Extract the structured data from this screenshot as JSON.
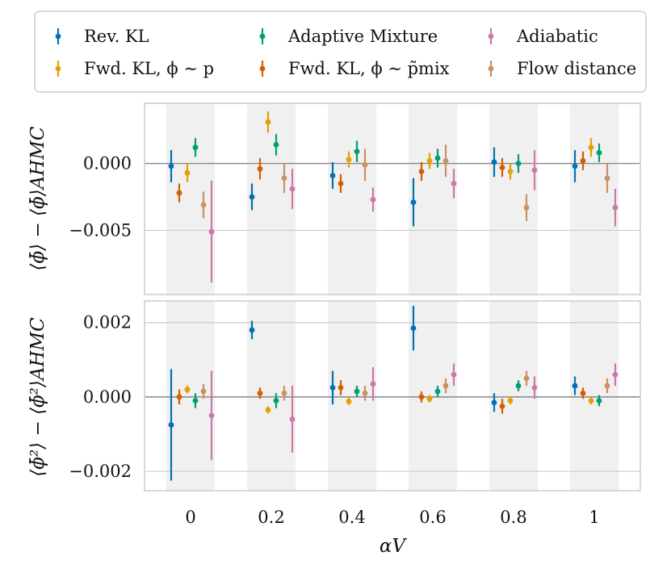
{
  "chart_data": {
    "type": "scatter",
    "style": "errorbar",
    "categories": [
      "0",
      "0.2",
      "0.4",
      "0.6",
      "0.8",
      "1"
    ],
    "xlabel": "αV",
    "legend": {
      "placement": "top",
      "columns": 3,
      "entries": [
        {
          "label": "Rev. KL",
          "color": "#0072b2"
        },
        {
          "label": "Fwd. KL, ϕ ∼ p",
          "color": "#e69f00"
        },
        {
          "label": "Adaptive Mixture",
          "color": "#009e73"
        },
        {
          "label": "Fwd. KL, ϕ ∼ p̃mix",
          "color": "#d55e00"
        },
        {
          "label": "Adiabatic",
          "color": "#cc79a7"
        },
        {
          "label": "Flow distance",
          "color": "#ca9161"
        }
      ]
    },
    "panels": [
      {
        "ylabel": "⟨ϕ̄⟩ − ⟨ϕ̄⟩AHMC",
        "ylim": [
          -0.0098,
          0.0045
        ],
        "yticks": [
          {
            "value": 0.0,
            "label": "0.000"
          },
          {
            "value": -0.005,
            "label": "−0.005"
          }
        ],
        "series": [
          {
            "name": "Rev. KL",
            "values": [
              -0.0002,
              -0.0025,
              -0.0009,
              -0.0029,
              0.0001,
              -0.0002
            ],
            "errors": [
              0.0012,
              0.001,
              0.001,
              0.0018,
              0.0011,
              0.0012
            ]
          },
          {
            "name": "Fwd. KL, ϕ ∼ p",
            "values": [
              -0.0007,
              0.0031,
              0.0003,
              0.0002,
              -0.0006,
              0.0012
            ],
            "errors": [
              0.0007,
              0.0008,
              0.0006,
              0.0006,
              0.0006,
              0.0007
            ]
          },
          {
            "name": "Adaptive Mixture",
            "values": [
              0.0012,
              0.0014,
              0.0009,
              0.0004,
              0.0,
              0.0008
            ],
            "errors": [
              0.0007,
              0.0008,
              0.0008,
              0.0007,
              0.0007,
              0.0007
            ]
          },
          {
            "name": "Fwd. KL, ϕ ∼ p̃mix",
            "values": [
              -0.0022,
              -0.0004,
              -0.0015,
              -0.0006,
              -0.0003,
              0.0002
            ],
            "errors": [
              0.0007,
              0.0008,
              0.0007,
              0.0007,
              0.0007,
              0.0007
            ]
          },
          {
            "name": "Adiabatic",
            "values": [
              -0.0051,
              -0.0019,
              -0.0027,
              -0.0015,
              -0.0005,
              -0.0033
            ],
            "errors": [
              0.0038,
              0.0015,
              0.0009,
              0.0011,
              0.0015,
              0.0014
            ]
          },
          {
            "name": "Flow distance",
            "values": [
              -0.0031,
              -0.0011,
              -0.0001,
              0.0002,
              -0.0033,
              -0.0011
            ],
            "errors": [
              0.001,
              0.0011,
              0.0012,
              0.0012,
              0.001,
              0.0011
            ]
          }
        ]
      },
      {
        "ylabel": "⟨ϕ̄²⟩ − ⟨ϕ̄²⟩AHMC",
        "ylim": [
          -0.00252,
          0.00258
        ],
        "yticks": [
          {
            "value": 0.002,
            "label": "0.002"
          },
          {
            "value": 0.0,
            "label": "0.000"
          },
          {
            "value": -0.002,
            "label": "−0.002"
          }
        ],
        "series": [
          {
            "name": "Rev. KL",
            "values": [
              -0.00075,
              0.0018,
              0.00025,
              0.00185,
              -0.00015,
              0.0003
            ],
            "errors": [
              0.0015,
              0.00025,
              0.00045,
              0.0006,
              0.00025,
              0.00025
            ]
          },
          {
            "name": "Fwd. KL, ϕ ∼ p",
            "values": [
              0.0002,
              -0.00035,
              -0.00012,
              -5e-05,
              -0.0001,
              -0.0001
            ],
            "errors": [
              0.0001,
              0.0001,
              0.0001,
              0.0001,
              0.0001,
              0.0001
            ]
          },
          {
            "name": "Adaptive Mixture",
            "values": [
              -0.0001,
              -0.0001,
              0.00015,
              0.00015,
              0.0003,
              -0.0001
            ],
            "errors": [
              0.0002,
              0.0002,
              0.00015,
              0.00015,
              0.00015,
              0.00015
            ]
          },
          {
            "name": "Fwd. KL, ϕ ∼ p̃mix",
            "values": [
              0.0,
              0.0001,
              0.00025,
              0.0,
              -0.00025,
              0.0001
            ],
            "errors": [
              0.0002,
              0.00015,
              0.0002,
              0.00015,
              0.0002,
              0.00015
            ]
          },
          {
            "name": "Adiabatic",
            "values": [
              -0.0005,
              -0.0006,
              0.00035,
              0.0006,
              0.00025,
              0.0006
            ],
            "errors": [
              0.0012,
              0.0009,
              0.00045,
              0.0003,
              0.0003,
              0.0003
            ]
          },
          {
            "name": "Flow distance",
            "values": [
              0.00015,
              0.0001,
              0.0001,
              0.0003,
              0.0005,
              0.0003
            ],
            "errors": [
              0.0002,
              0.0002,
              0.0002,
              0.0002,
              0.0002,
              0.0002
            ]
          }
        ]
      }
    ]
  }
}
